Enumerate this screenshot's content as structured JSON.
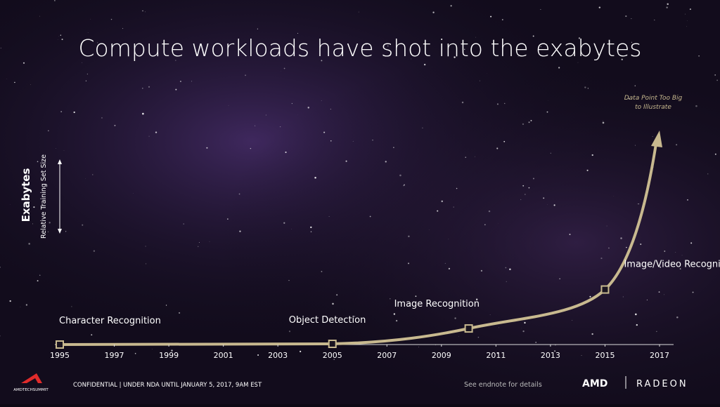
{
  "chart_data": {
    "type": "line",
    "title": "Compute workloads have shot into the exabytes",
    "y_label": "Exabytes",
    "y_sublabel": "Relative Training Set Size",
    "xlim": [
      1995,
      2017
    ],
    "xticks": [
      1995,
      1997,
      1999,
      2001,
      2003,
      2005,
      2007,
      2009,
      2011,
      2013,
      2015,
      2017
    ],
    "points": [
      {
        "label": "Character Recognition",
        "x": 1995
      },
      {
        "label": "Object Detection",
        "x": 2005
      },
      {
        "label": "Image Recognition",
        "x": 2010
      },
      {
        "label": "Image/Video Recognition",
        "x": 2015
      }
    ],
    "annotation": [
      "Data Point Too Big",
      "to Illustrate"
    ],
    "color": "#c8b98f"
  },
  "footer": {
    "logo_text": "AMDTECHSUMMIT",
    "confidential": "CONFIDENTIAL | UNDER NDA UNTIL JANUARY 5, 2017, 9AM EST",
    "endnote": "See endnote for details",
    "brand_left": "AMD",
    "brand_right": "RADEON"
  }
}
